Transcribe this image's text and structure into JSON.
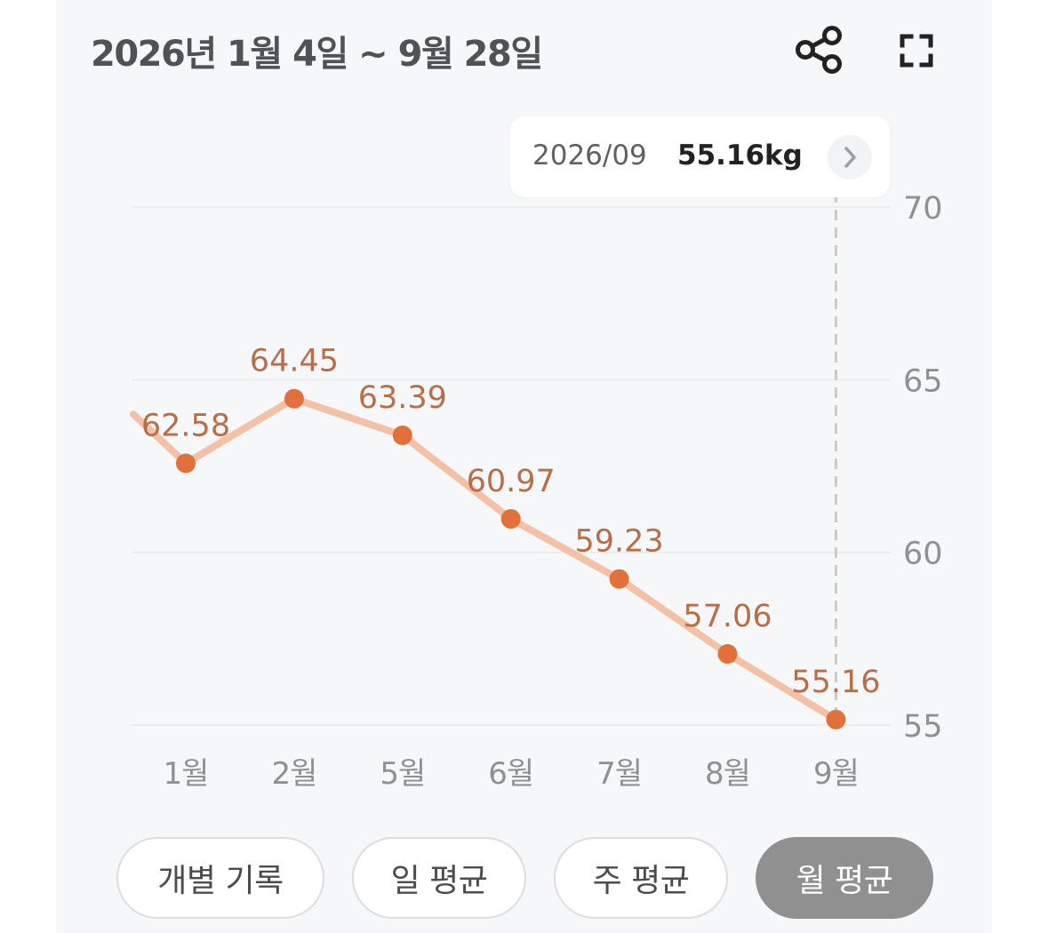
{
  "header": {
    "title": "2026년 1월 4일 ~ 9월 28일"
  },
  "toolbar": {
    "share_icon": "share-icon",
    "expand_icon": "fullscreen-icon"
  },
  "tooltip": {
    "date": "2026/09",
    "value": "55.16kg",
    "arrow_icon": "chevron-right-icon"
  },
  "chart_data": {
    "type": "line",
    "categories": [
      "1월",
      "2월",
      "5월",
      "6월",
      "7월",
      "8월",
      "9월"
    ],
    "series": [
      {
        "values": [
          62.58,
          64.45,
          63.39,
          60.97,
          59.23,
          57.06,
          55.16
        ]
      }
    ],
    "value_labels": [
      "62.58",
      "64.45",
      "63.39",
      "60.97",
      "59.23",
      "57.06",
      "55.16"
    ],
    "leading_value": 64.0,
    "y_ticks": [
      55,
      60,
      65,
      70
    ],
    "ylim": [
      55,
      70
    ],
    "y_axis_side": "right",
    "grid": true,
    "selected_index": 6,
    "colors": {
      "line": "#f2c1a6",
      "point": "#e2703a",
      "label": "#b86e48",
      "selected_marker": "#cfcabf"
    }
  },
  "tabs": [
    {
      "label": "개별 기록",
      "active": false
    },
    {
      "label": "일 평균",
      "active": false
    },
    {
      "label": "주 평균",
      "active": false
    },
    {
      "label": "월 평균",
      "active": true
    }
  ]
}
